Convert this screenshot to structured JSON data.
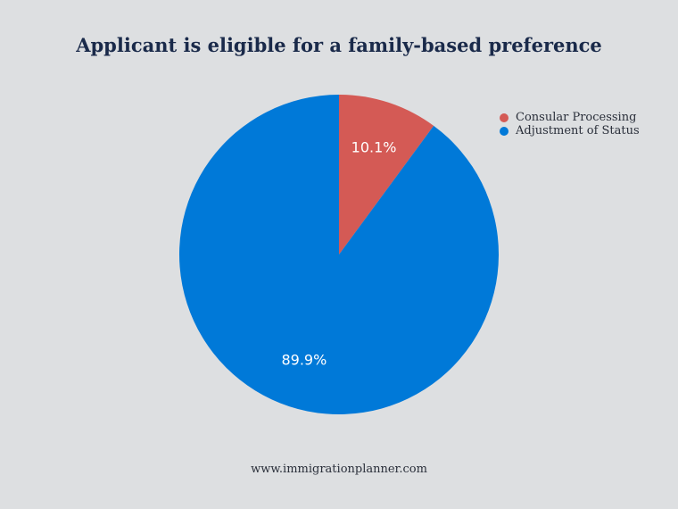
{
  "chart_data": {
    "type": "pie",
    "title": "Applicant is eligible for a family-based preference",
    "slices": [
      {
        "label": "Consular Processing",
        "value": 10.1,
        "display": "10.1%",
        "color": "#d45a55"
      },
      {
        "label": "Adjustment of Status",
        "value": 89.9,
        "display": "89.9%",
        "color": "#0079d8"
      }
    ],
    "legend_position": "top-right"
  },
  "footer": {
    "text": "www.immigrationplanner.com"
  }
}
